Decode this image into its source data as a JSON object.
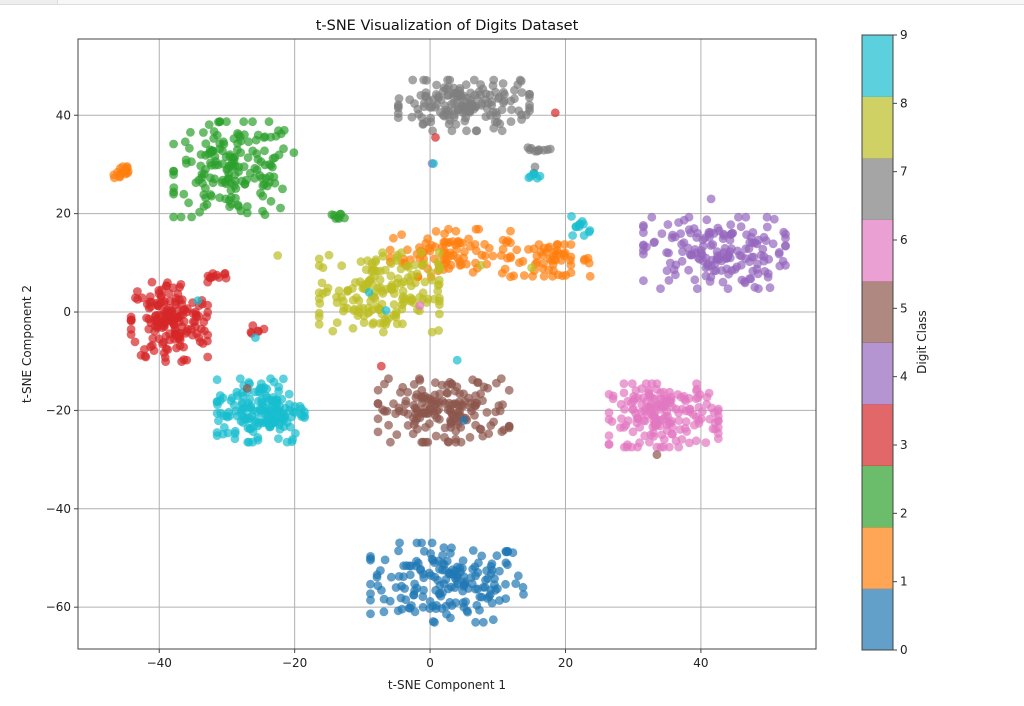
{
  "chart_data": {
    "type": "scatter",
    "title": "t-SNE Visualization of Digits Dataset",
    "xlabel": "t-SNE Component 1",
    "ylabel": "t-SNE Component 2",
    "xlim": [
      -52,
      57
    ],
    "ylim": [
      -68.5,
      55.5
    ],
    "xticks": [
      -40,
      -20,
      0,
      20,
      40
    ],
    "xtick_labels": [
      "−40",
      "−20",
      "0",
      "20",
      "40"
    ],
    "yticks": [
      -60,
      -40,
      -20,
      0,
      20,
      40
    ],
    "ytick_labels": [
      "−60",
      "−40",
      "−20",
      "0",
      "20",
      "40"
    ],
    "grid": true,
    "alpha": 0.7,
    "colorbar": {
      "label": "Digit Class",
      "range": [
        0,
        9
      ],
      "ticks": [
        0,
        1,
        2,
        3,
        4,
        5,
        6,
        7,
        8,
        9
      ],
      "tick_labels": [
        "0",
        "1",
        "2",
        "3",
        "4",
        "5",
        "6",
        "7",
        "8",
        "9"
      ],
      "colors": [
        "#1f77b4",
        "#ff7f0e",
        "#2ca02c",
        "#d62728",
        "#9467bd",
        "#8c564b",
        "#e377c2",
        "#7f7f7f",
        "#bcbd22",
        "#17becf"
      ]
    },
    "clusters": [
      {
        "digit": 0,
        "cx": 2.5,
        "cy": -55,
        "sx": 7,
        "sy": 5,
        "n": 180
      },
      {
        "digit": 1,
        "cx": 3,
        "cy": 12,
        "sx": 5.5,
        "sy": 3,
        "n": 95
      },
      {
        "digit": 1,
        "cx": 18,
        "cy": 10.5,
        "sx": 3.5,
        "sy": 2,
        "n": 55
      },
      {
        "digit": 1,
        "cx": -45.5,
        "cy": 28.5,
        "sx": 0.9,
        "sy": 1.2,
        "n": 16
      },
      {
        "digit": 2,
        "cx": -29,
        "cy": 29,
        "sx": 5.5,
        "sy": 6,
        "n": 170
      },
      {
        "digit": 2,
        "cx": -13.5,
        "cy": 19.5,
        "sx": 0.9,
        "sy": 0.3,
        "n": 8
      },
      {
        "digit": 3,
        "cx": -38.5,
        "cy": -2,
        "sx": 3.5,
        "sy": 5,
        "n": 170
      },
      {
        "digit": 3,
        "cx": -31.5,
        "cy": 7.5,
        "sx": 1.5,
        "sy": 0.5,
        "n": 10
      },
      {
        "digit": 3,
        "cx": -25.5,
        "cy": -3.5,
        "sx": 0.6,
        "sy": 0.6,
        "n": 6
      },
      {
        "digit": 4,
        "cx": 42,
        "cy": 12,
        "sx": 6.5,
        "sy": 4.5,
        "n": 170
      },
      {
        "digit": 5,
        "cx": 2,
        "cy": -20,
        "sx": 6,
        "sy": 4,
        "n": 170
      },
      {
        "digit": 6,
        "cx": 34.5,
        "cy": -21,
        "sx": 5,
        "sy": 4,
        "n": 180
      },
      {
        "digit": 7,
        "cx": 5,
        "cy": 42,
        "sx": 6,
        "sy": 3.2,
        "n": 165
      },
      {
        "digit": 7,
        "cx": 16,
        "cy": 33,
        "sx": 1.5,
        "sy": 0.3,
        "n": 10
      },
      {
        "digit": 8,
        "cx": -7.5,
        "cy": 4,
        "sx": 5.5,
        "sy": 5,
        "n": 175
      },
      {
        "digit": 9,
        "cx": -25,
        "cy": -20,
        "sx": 4,
        "sy": 4,
        "n": 170
      },
      {
        "digit": 9,
        "cx": 22.5,
        "cy": 17.5,
        "sx": 1,
        "sy": 1.2,
        "n": 12
      },
      {
        "digit": 9,
        "cx": 15.5,
        "cy": 27.5,
        "sx": 0.6,
        "sy": 0.6,
        "n": 7
      }
    ],
    "points": [
      {
        "x": 0.8,
        "y": 35.5,
        "digit": 3
      },
      {
        "x": 18.5,
        "y": 40.5,
        "digit": 3
      },
      {
        "x": 0.3,
        "y": 30.2,
        "digit": 4
      },
      {
        "x": 0.5,
        "y": 30.2,
        "digit": 9
      },
      {
        "x": 15.5,
        "y": 29.5,
        "digit": 7
      },
      {
        "x": -7.2,
        "y": -11,
        "digit": 3
      },
      {
        "x": 4,
        "y": -9.8,
        "digit": 9
      },
      {
        "x": -34.3,
        "y": 2.3,
        "digit": 9
      },
      {
        "x": -25.8,
        "y": -5.2,
        "digit": 9
      },
      {
        "x": -22.5,
        "y": 11.5,
        "digit": 8
      },
      {
        "x": -23.5,
        "y": 22.5,
        "digit": 2
      },
      {
        "x": -33,
        "y": -1,
        "digit": 3
      },
      {
        "x": 15,
        "y": 9,
        "digit": 8
      },
      {
        "x": 7.5,
        "y": 9.5,
        "digit": 8
      },
      {
        "x": -1.5,
        "y": 1.3,
        "digit": 6
      },
      {
        "x": -6.5,
        "y": 0.3,
        "digit": 9
      },
      {
        "x": -9,
        "y": 4,
        "digit": 9
      },
      {
        "x": 11.5,
        "y": 14.5,
        "digit": 1
      },
      {
        "x": 10.5,
        "y": 11.5,
        "digit": 1
      },
      {
        "x": 33.5,
        "y": -29,
        "digit": 5
      },
      {
        "x": -27,
        "y": -15.5,
        "digit": 5
      },
      {
        "x": 41.5,
        "y": 23,
        "digit": 4
      },
      {
        "x": 5,
        "y": -22,
        "digit": 0
      }
    ]
  }
}
